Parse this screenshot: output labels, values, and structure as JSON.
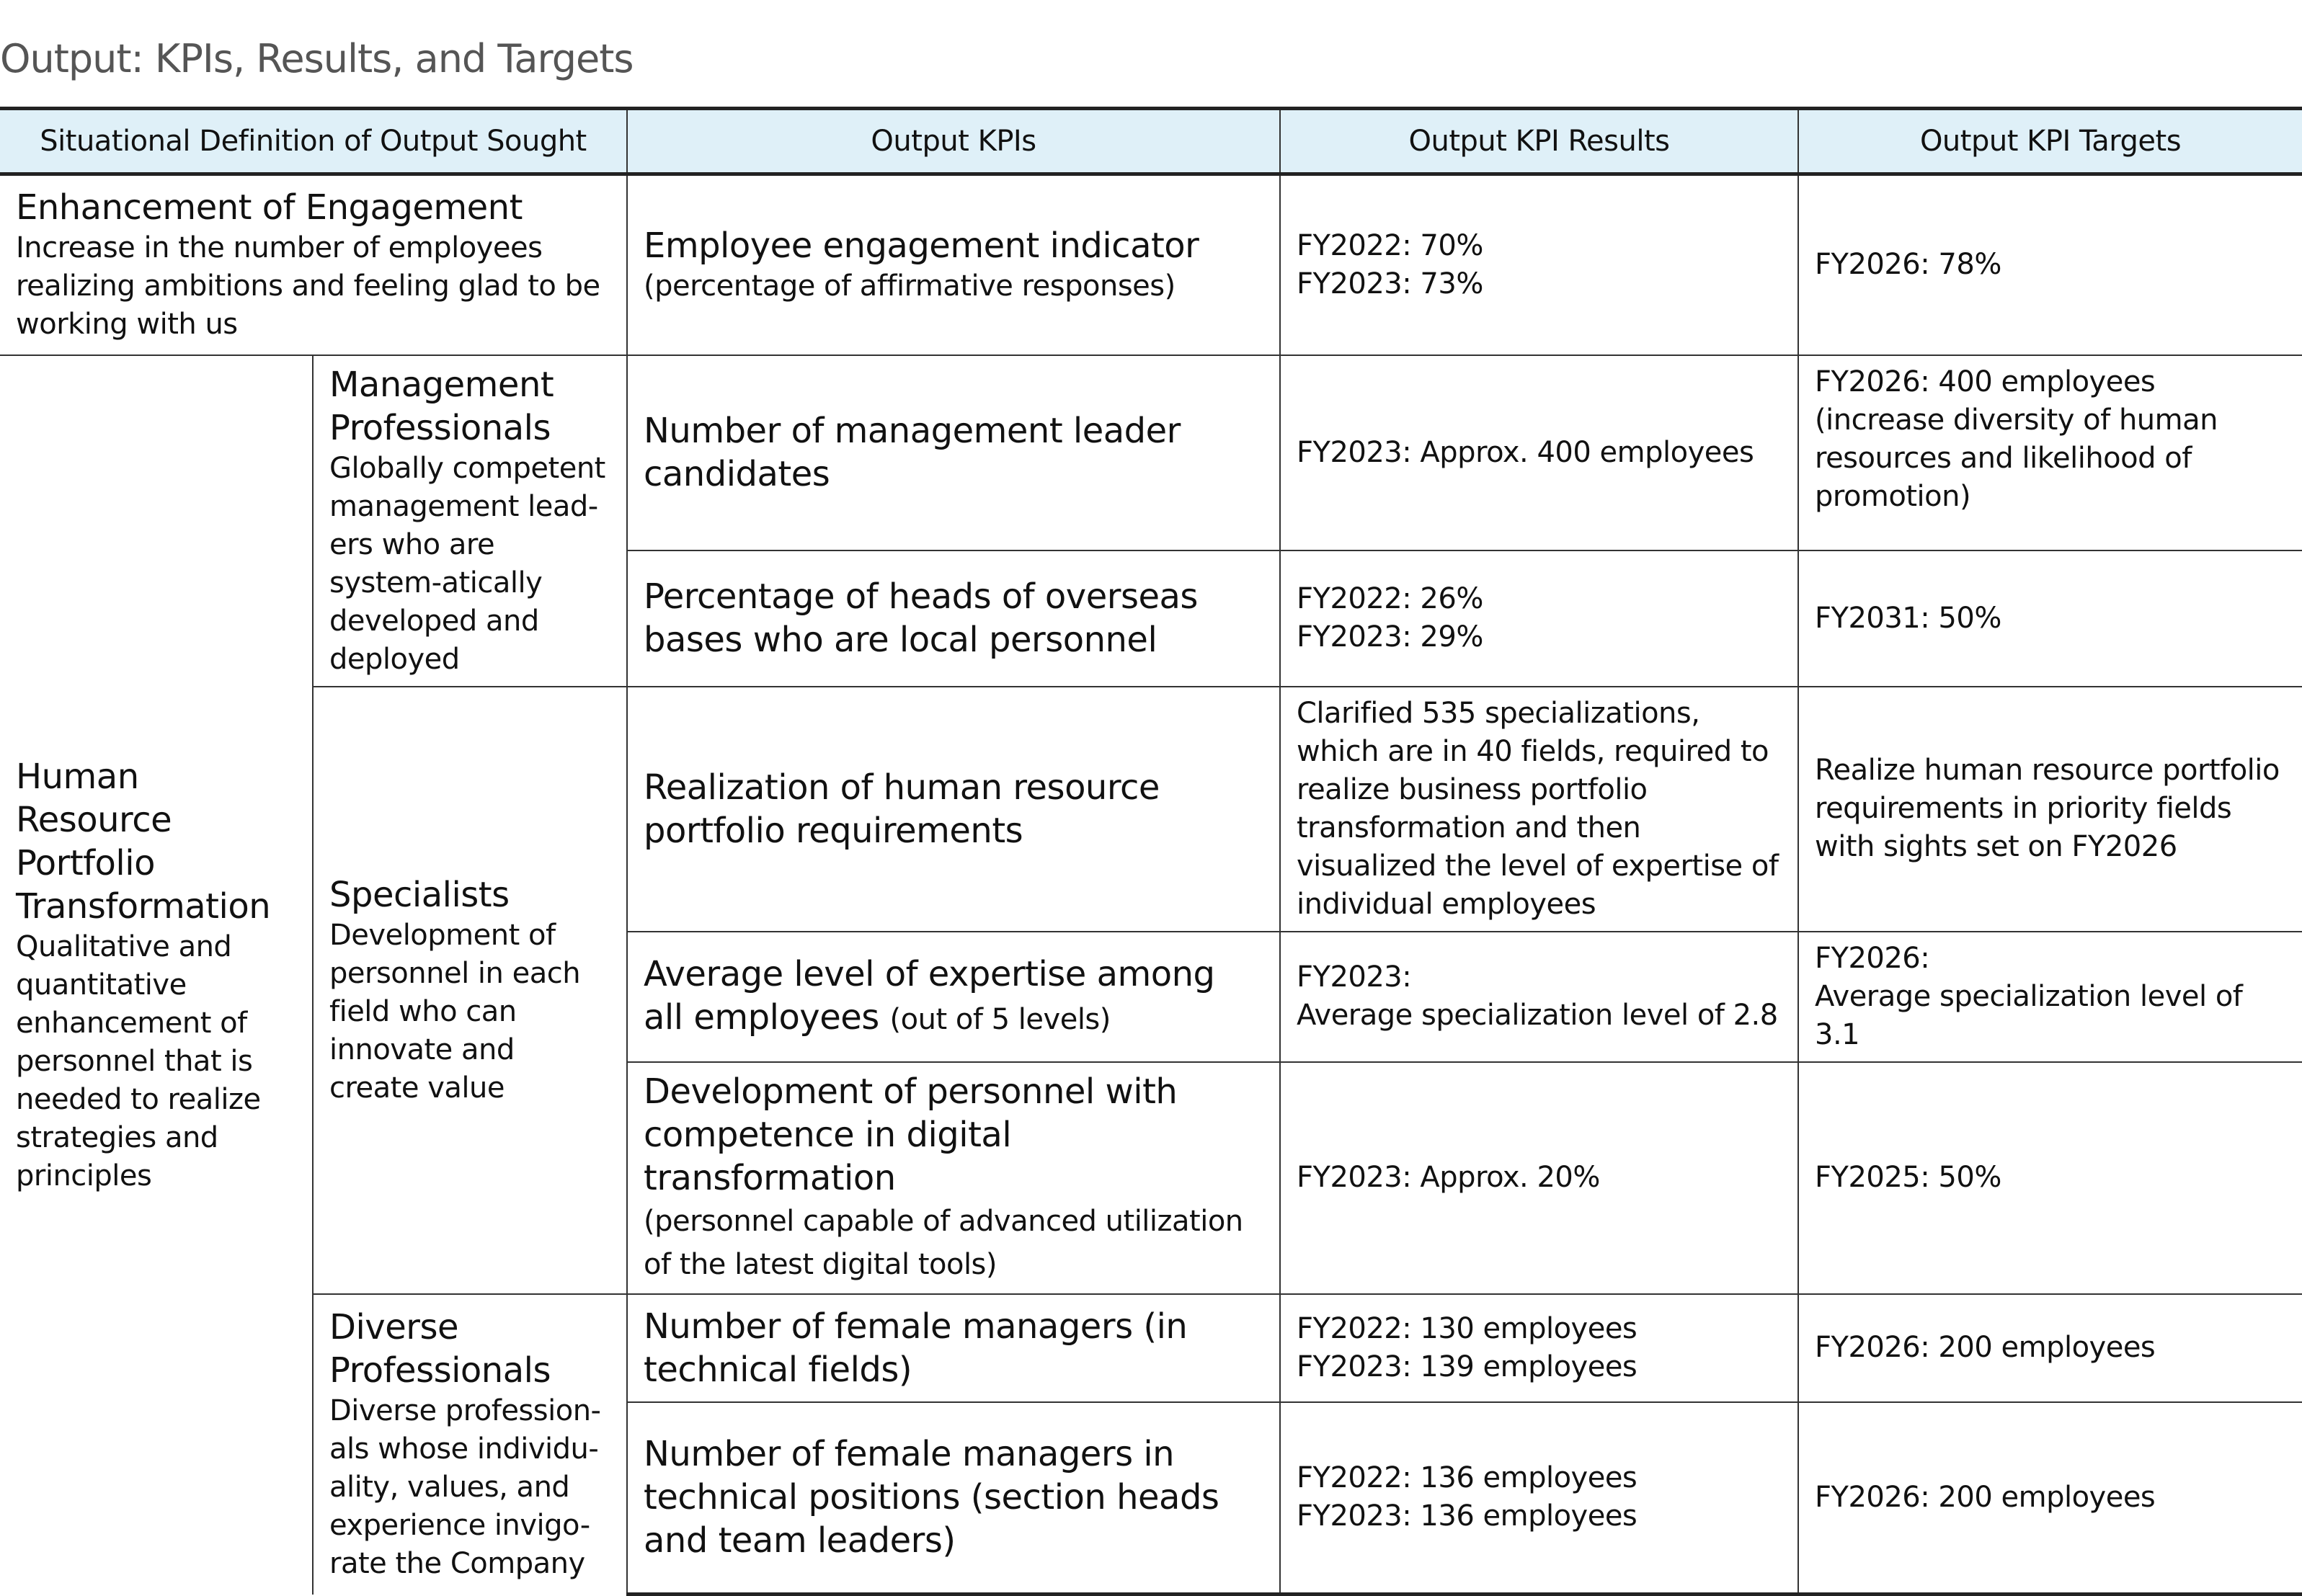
{
  "title": "Output: KPIs, Results, and Targets",
  "headers": [
    "Situational Definition of Output Sought",
    "Output KPIs",
    "Output KPI Results",
    "Output KPI Targets"
  ],
  "engagement": {
    "heading": "Enhancement of Engagement",
    "desc": "Increase in the number of employees realizing ambitions and feeling glad to be working with us",
    "kpi": "Employee engagement indicator",
    "kpi_note": "(percentage of affirmative responses)",
    "results": [
      "FY2022: 70%",
      "FY2023: 73%"
    ],
    "target": "FY2026: 78%"
  },
  "hr": {
    "heading": "Human Resource Portfolio Transformation",
    "desc": "Qualitative and quantitative enhancement of personnel that is needed to realize strategies and principles"
  },
  "management": {
    "heading": "Management Professionals",
    "desc": "Globally competent management lead-ers who are system-atically developed and deployed",
    "rows": [
      {
        "kpi": "Number of management leader candidates",
        "results": [
          "FY2023: Approx. 400 employees"
        ],
        "target": [
          "FY2026: 400 employees",
          "(increase diversity of human resources and likelihood of promotion)"
        ]
      },
      {
        "kpi": "Percentage of heads of overseas bases who are local personnel",
        "results": [
          "FY2022: 26%",
          "FY2023: 29%"
        ],
        "target": [
          "FY2031: 50%"
        ]
      }
    ]
  },
  "specialists": {
    "heading": "Specialists",
    "desc": "Development of personnel in each field who can innovate and create value",
    "rows": [
      {
        "kpi": "Realization of human resource portfolio requirements",
        "results": [
          "Clarified 535 specializations, which are in 40 fields, required to realize business portfolio transformation and then visualized the level of expertise of individual employees"
        ],
        "target": [
          "Realize human resource portfolio requirements in priority fields with sights set on FY2026"
        ]
      },
      {
        "kpi": "Average level of expertise among all employees",
        "kpi_note": "(out of 5 levels)",
        "results": [
          "FY2023:",
          "Average specialization level of 2.8"
        ],
        "target": [
          "FY2026:",
          "Average specialization level of 3.1"
        ]
      },
      {
        "kpi": "Development of personnel with competence in digital transformation",
        "kpi_note": "(personnel capable of advanced utilization of the latest digital tools)",
        "results": [
          "FY2023: Approx. 20%"
        ],
        "target": [
          "FY2025: 50%"
        ]
      }
    ]
  },
  "diverse": {
    "heading": "Diverse Professionals",
    "desc": "Diverse profession-als whose individu-ality, values, and experience invigo-rate the Company",
    "rows": [
      {
        "kpi": "Number of female managers (in technical fields)",
        "results": [
          "FY2022: 130 employees",
          "FY2023: 139 employees"
        ],
        "target": [
          "FY2026: 200 employees"
        ]
      },
      {
        "kpi": "Number of female managers in technical positions (section heads and team leaders)",
        "results": [
          "FY2022: 136 employees",
          "FY2023: 136 employees"
        ],
        "target": [
          "FY2026: 200 employees"
        ]
      }
    ]
  },
  "colors": {
    "header_bg": "#dff0f8",
    "title": "#555555"
  }
}
